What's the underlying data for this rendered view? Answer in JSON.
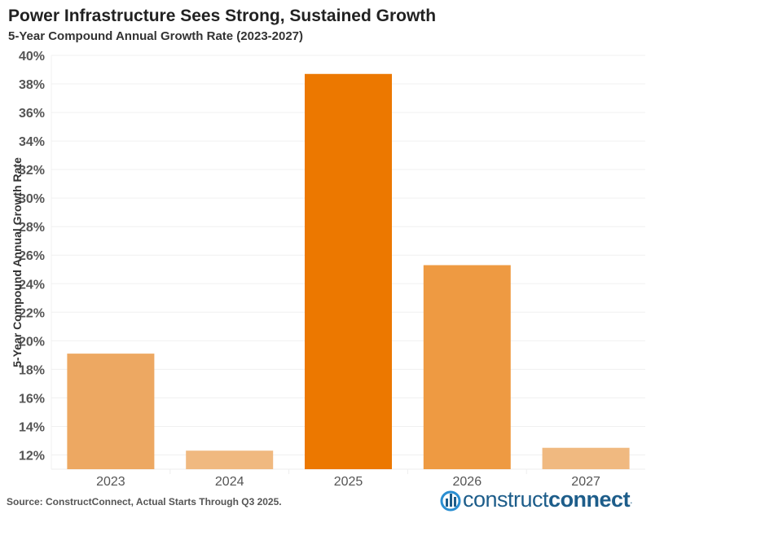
{
  "title": "Power Infrastructure Sees Strong, Sustained Growth",
  "subtitle": "5-Year Compound Annual Growth Rate (2023-2027)",
  "source": "Source: ConstructConnect, Actual Starts Through Q3 2025.",
  "logo": {
    "light": "construct",
    "bold": "connect",
    "mark": "."
  },
  "chart_data": {
    "type": "bar",
    "categories": [
      "2023",
      "2024",
      "2025",
      "2026",
      "2027"
    ],
    "values": [
      19.1,
      12.3,
      38.7,
      25.3,
      12.5
    ],
    "colors": [
      "#EDA862",
      "#F0B980",
      "#EC7800",
      "#EE9A42",
      "#F0B980"
    ],
    "ylabel": "5-Year Compound Annual Growth Rate",
    "xlabel": "",
    "ylim": [
      11,
      40
    ],
    "yticks": [
      12,
      14,
      16,
      18,
      20,
      22,
      24,
      26,
      28,
      30,
      32,
      34,
      36,
      38,
      40
    ],
    "ytick_format": "%",
    "grid": true
  }
}
